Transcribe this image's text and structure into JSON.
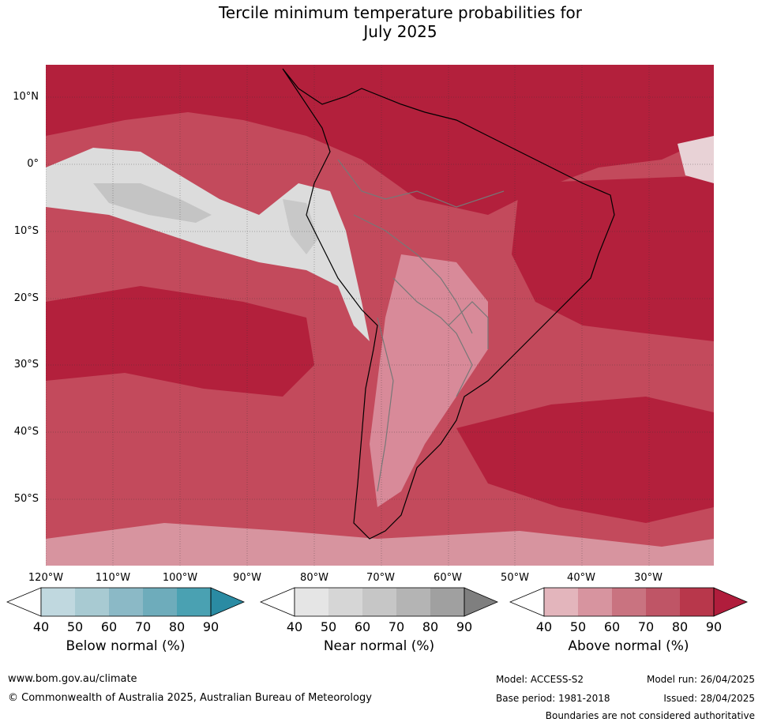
{
  "title_line1": "Tercile minimum temperature probabilities for",
  "title_line2": "July 2025",
  "latitude_labels": [
    "10°N",
    "0°",
    "10°S",
    "20°S",
    "30°S",
    "40°S",
    "50°S"
  ],
  "longitude_labels": [
    "120°W",
    "110°W",
    "100°W",
    "90°W",
    "80°W",
    "70°W",
    "60°W",
    "50°W",
    "40°W",
    "30°W"
  ],
  "legends": [
    {
      "label": "Below normal (%)",
      "colors": [
        "#ffffff",
        "#c0d8df",
        "#a8cad2",
        "#8bb9c6",
        "#6eacbb",
        "#4aa1b2",
        "#2a8ba3"
      ],
      "ticks": [
        "40",
        "50",
        "60",
        "70",
        "80",
        "90"
      ]
    },
    {
      "label": "Near normal (%)",
      "colors": [
        "#ffffff",
        "#e5e5e5",
        "#d6d6d6",
        "#c6c6c6",
        "#b4b4b4",
        "#a0a0a0",
        "#7f7f7f"
      ],
      "ticks": [
        "40",
        "50",
        "60",
        "70",
        "80",
        "90"
      ]
    },
    {
      "label": "Above normal (%)",
      "colors": [
        "#ffffff",
        "#e3b5bc",
        "#d7949f",
        "#c97380",
        "#bf5566",
        "#b8374b",
        "#b01d3c"
      ],
      "ticks": [
        "40",
        "50",
        "60",
        "70",
        "80",
        "90"
      ]
    }
  ],
  "footer": {
    "url": "www.bom.gov.au/climate",
    "copyright": "© Commonwealth of Australia 2025, Australian Bureau of Meteorology",
    "model": "Model: ACCESS-S2",
    "base_period": "Base period: 1981-2018",
    "model_run": "Model run: 26/04/2025",
    "issued": "Issued: 28/04/2025",
    "disclaimer": "Boundaries are not considered authoritative"
  }
}
